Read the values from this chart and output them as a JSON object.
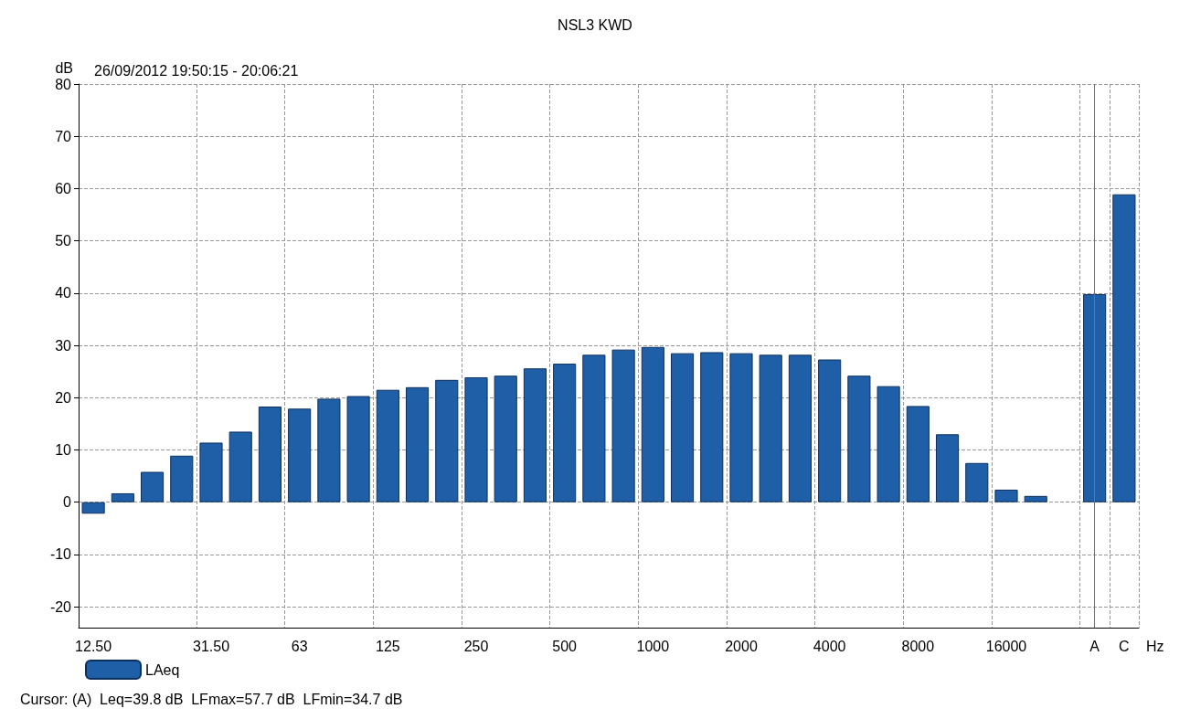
{
  "chart_data": {
    "type": "bar",
    "title": "NSL3 KWD",
    "subtitle": "26/09/2012 19:50:15 - 20:06:21",
    "ylabel": "dB",
    "xlabel": "Hz",
    "annotations": [
      "Cursor: (A)  Leq=39.8 dB  LFmax=57.7 dB  LFmin=34.7 dB"
    ],
    "categories": [
      "12.50",
      null,
      null,
      null,
      "31.50",
      null,
      null,
      "63",
      null,
      null,
      "125",
      null,
      null,
      "250",
      null,
      null,
      "500",
      null,
      null,
      "1000",
      null,
      null,
      "2000",
      null,
      null,
      "4000",
      null,
      null,
      "8000",
      null,
      null,
      "16000",
      null,
      null,
      "A",
      "C"
    ],
    "series": [
      {
        "name": "LAeq",
        "color": "#1f5fa8",
        "values": [
          -2.2,
          1.7,
          5.8,
          8.9,
          11.4,
          13.5,
          18.3,
          17.9,
          19.8,
          20.3,
          21.5,
          22.0,
          23.4,
          23.9,
          24.2,
          25.6,
          26.5,
          28.2,
          29.2,
          29.7,
          28.5,
          28.7,
          28.5,
          28.2,
          28.2,
          27.3,
          24.2,
          22.2,
          18.4,
          13.0,
          7.5,
          2.4,
          1.2,
          null,
          39.8,
          58.9
        ]
      }
    ],
    "ylim": [
      -24,
      80
    ],
    "yticks": [
      -20,
      -10,
      0,
      10,
      20,
      30,
      40,
      50,
      60,
      70,
      80
    ],
    "ref_lines": [
      {
        "axis": "x",
        "value": "A",
        "color": "#d04080"
      }
    ],
    "grid": true,
    "legend": "bottom left"
  }
}
